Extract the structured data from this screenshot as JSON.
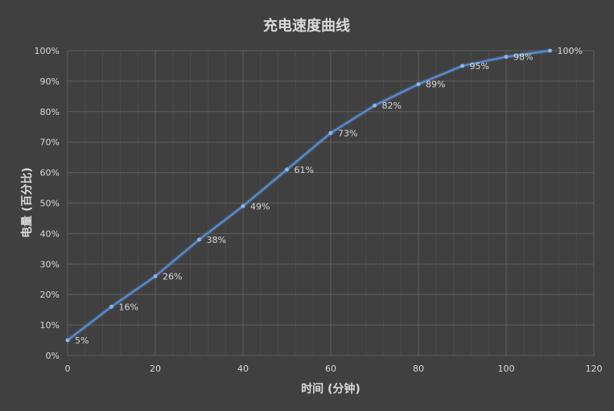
{
  "chart_data": {
    "type": "line",
    "title": "充电速度曲线",
    "xlabel": "时间 (分钟)",
    "ylabel": "电量 (百分比)",
    "x": [
      0,
      10,
      20,
      30,
      40,
      50,
      60,
      70,
      80,
      90,
      100,
      110
    ],
    "series": [
      {
        "values": [
          5,
          16,
          26,
          38,
          49,
          61,
          73,
          82,
          89,
          95,
          98,
          100
        ]
      }
    ],
    "data_labels": [
      "5%",
      "16%",
      "26%",
      "38%",
      "49%",
      "61%",
      "73%",
      "82%",
      "89%",
      "95%",
      "98%",
      "100%"
    ],
    "xlim": [
      0,
      120
    ],
    "ylim": [
      0,
      100
    ],
    "xticks": [
      "0",
      "20",
      "40",
      "60",
      "80",
      "100",
      "120"
    ],
    "yticks": [
      "0%",
      "10%",
      "20%",
      "30%",
      "40%",
      "50%",
      "60%",
      "70%",
      "80%",
      "90%",
      "100%"
    ],
    "grid": true,
    "colors": {
      "background": "#404040",
      "line": "#5b8fd6",
      "text": "#d9d9d9",
      "grid": "#595959"
    }
  }
}
